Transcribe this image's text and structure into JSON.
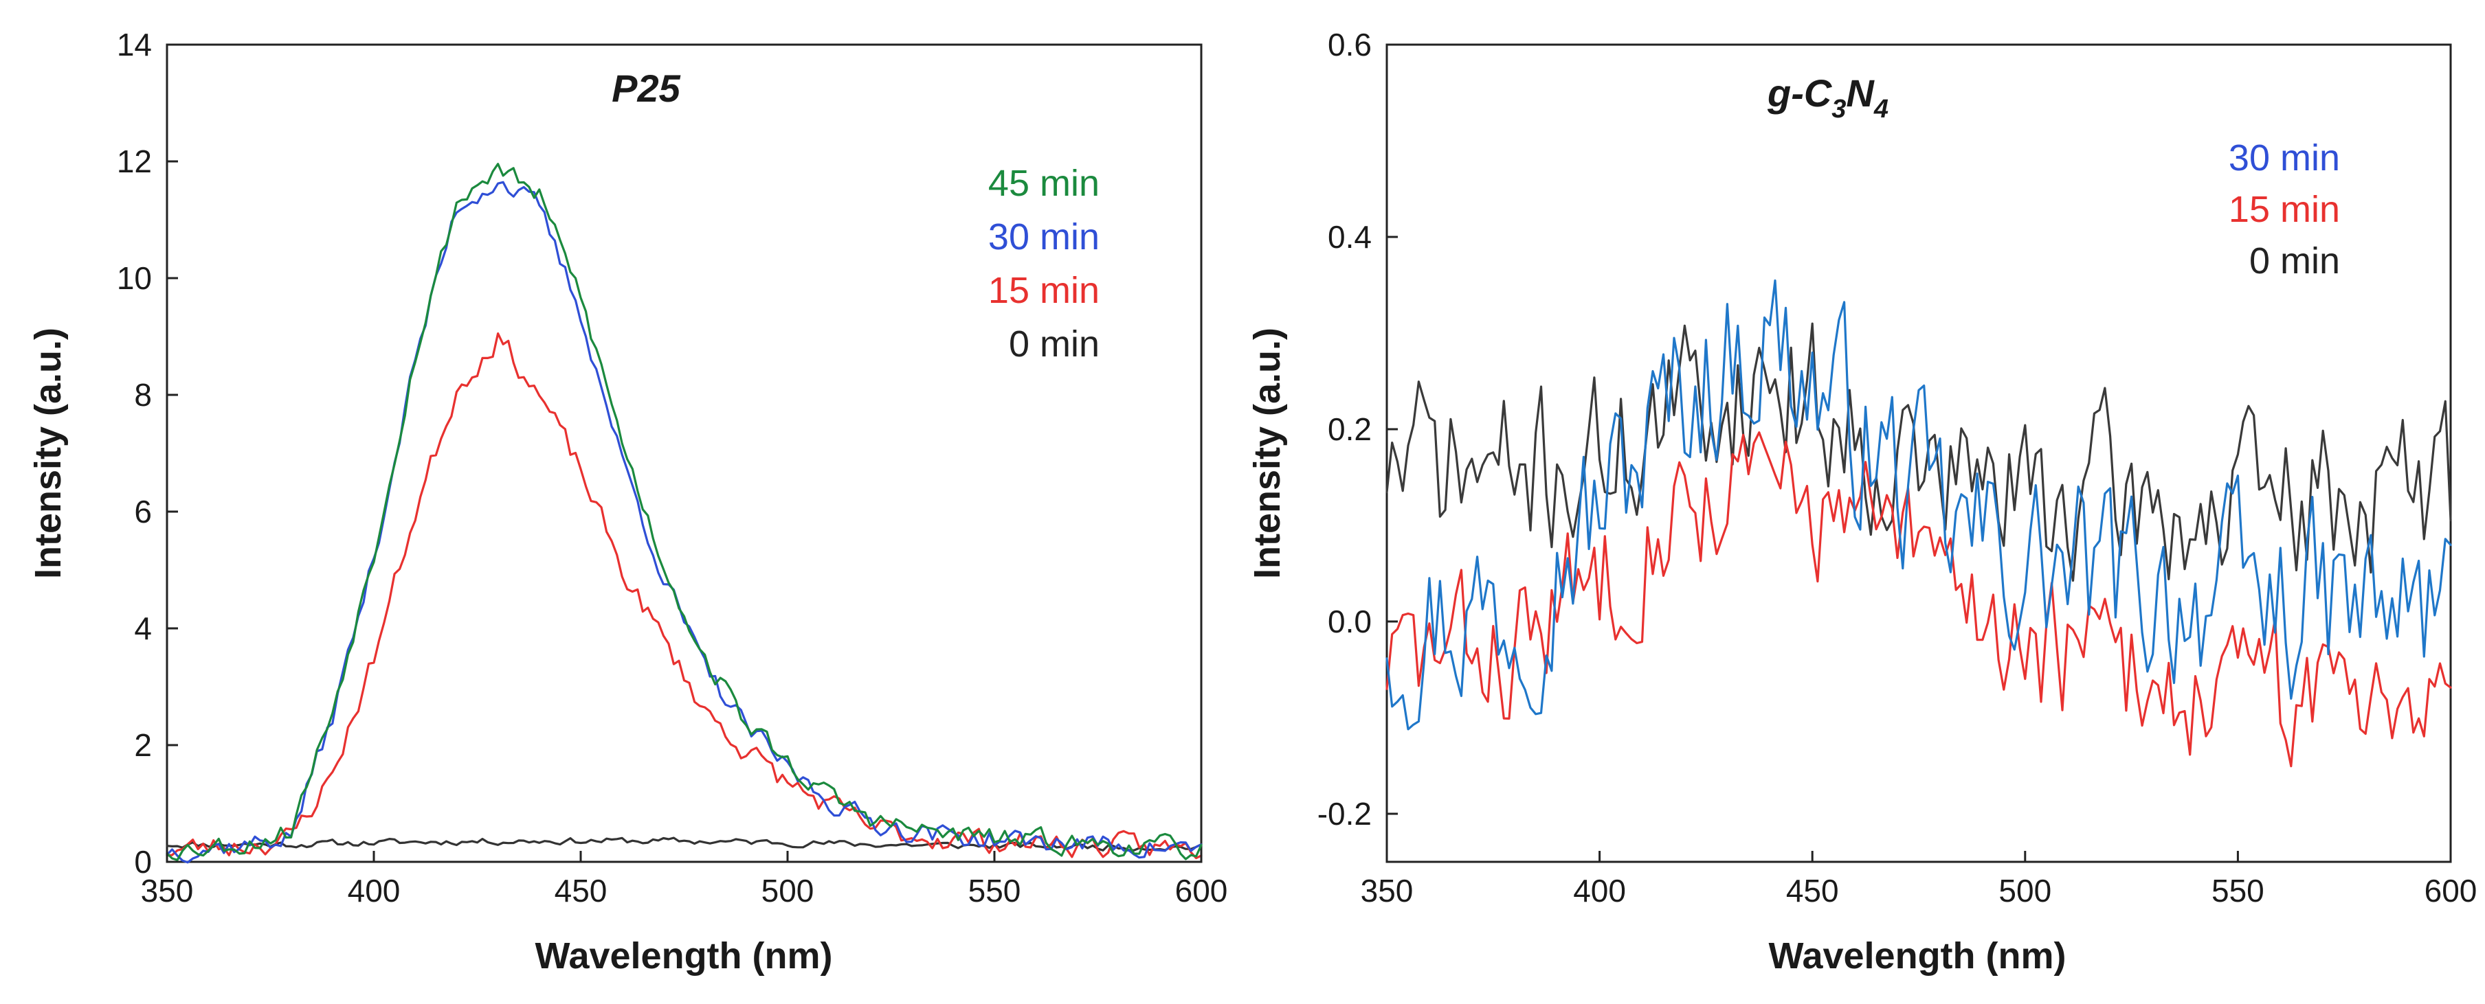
{
  "chart_data": [
    {
      "type": "line",
      "title": "P25",
      "xlabel": "Wavelength (nm)",
      "ylabel": "Intensity (a.u.)",
      "xlim": [
        350,
        600
      ],
      "ylim": [
        0,
        14
      ],
      "xticks": [
        "350",
        "400",
        "450",
        "500",
        "550",
        "600"
      ],
      "yticks": [
        "0",
        "2",
        "4",
        "6",
        "8",
        "10",
        "12",
        "14"
      ],
      "xtick_values": [
        350,
        400,
        450,
        500,
        550,
        600
      ],
      "ytick_values": [
        0,
        2,
        4,
        6,
        8,
        10,
        12,
        14
      ],
      "legend_position": "top-right",
      "series": [
        {
          "name": "0  min",
          "color": "#333333",
          "noise": 0.05,
          "seed": 11,
          "x": [
            350,
            380,
            400,
            420,
            440,
            460,
            480,
            500,
            520,
            540,
            560,
            580,
            600
          ],
          "y": [
            0.3,
            0.3,
            0.33,
            0.35,
            0.36,
            0.36,
            0.35,
            0.33,
            0.3,
            0.28,
            0.27,
            0.26,
            0.25
          ]
        },
        {
          "name": "15 min",
          "color": "#e8312f",
          "noise": 0.18,
          "seed": 23,
          "x": [
            350,
            370,
            380,
            390,
            400,
            410,
            420,
            430,
            440,
            450,
            460,
            470,
            480,
            490,
            500,
            510,
            520,
            530,
            550,
            575,
            600
          ],
          "y": [
            0.2,
            0.3,
            0.4,
            1.5,
            3.5,
            6.0,
            8.1,
            9.0,
            8.0,
            6.7,
            5.0,
            3.8,
            2.6,
            1.9,
            1.35,
            0.95,
            0.6,
            0.45,
            0.35,
            0.28,
            0.22
          ]
        },
        {
          "name": "30 min",
          "color": "#2f4fd6",
          "noise": 0.16,
          "seed": 37,
          "x": [
            350,
            370,
            380,
            390,
            400,
            410,
            420,
            430,
            440,
            450,
            460,
            470,
            480,
            490,
            500,
            510,
            520,
            530,
            550,
            575,
            600
          ],
          "y": [
            0.2,
            0.3,
            0.45,
            2.5,
            5.2,
            8.6,
            11.2,
            11.7,
            11.2,
            9.4,
            6.9,
            4.9,
            3.3,
            2.3,
            1.6,
            1.05,
            0.7,
            0.52,
            0.38,
            0.3,
            0.22
          ]
        },
        {
          "name": "45 min",
          "color": "#1b8a3e",
          "noise": 0.16,
          "seed": 53,
          "x": [
            350,
            370,
            380,
            390,
            400,
            410,
            420,
            430,
            440,
            450,
            460,
            470,
            480,
            490,
            500,
            510,
            520,
            530,
            550,
            575,
            600
          ],
          "y": [
            0.22,
            0.32,
            0.55,
            2.6,
            5.3,
            8.7,
            11.3,
            11.9,
            11.4,
            9.7,
            7.2,
            5.1,
            3.5,
            2.4,
            1.7,
            1.12,
            0.75,
            0.55,
            0.4,
            0.3,
            0.22
          ]
        }
      ],
      "legend": [
        {
          "label": "45 min",
          "color": "#1b8a3e"
        },
        {
          "label": "30 min",
          "color": "#2f4fd6"
        },
        {
          "label": "15 min",
          "color": "#e8312f"
        },
        {
          "label": "0  min",
          "color": "#222222"
        }
      ]
    },
    {
      "type": "line",
      "title": "g-C",
      "title_sub1": "3",
      "title_mid": "N",
      "title_sub2": "4",
      "xlabel": "Wavelength (nm)",
      "ylabel": "Intensity (a.u.)",
      "xlim": [
        350,
        600
      ],
      "ylim": [
        -0.25,
        0.6
      ],
      "xticks": [
        "350",
        "400",
        "450",
        "500",
        "550",
        "600"
      ],
      "yticks": [
        "-0.2",
        "0.0",
        "0.2",
        "0.4",
        "0.6"
      ],
      "xtick_values": [
        350,
        400,
        450,
        500,
        550,
        600
      ],
      "ytick_values": [
        -0.2,
        0.0,
        0.2,
        0.4,
        0.6
      ],
      "legend_position": "top-right",
      "series": [
        {
          "name": "0  min",
          "color": "#3a3a3a",
          "noise": 0.075,
          "seed": 71,
          "x": [
            350,
            380,
            400,
            420,
            440,
            460,
            480,
            500,
            520,
            540,
            560,
            580,
            600
          ],
          "y": [
            0.17,
            0.15,
            0.17,
            0.22,
            0.26,
            0.2,
            0.15,
            0.13,
            0.13,
            0.11,
            0.12,
            0.13,
            0.14
          ]
        },
        {
          "name": "15 min",
          "color": "#e8312f",
          "noise": 0.065,
          "seed": 83,
          "x": [
            350,
            380,
            400,
            420,
            440,
            460,
            480,
            500,
            520,
            540,
            560,
            580,
            600
          ],
          "y": [
            -0.04,
            -0.03,
            0.05,
            0.13,
            0.14,
            0.1,
            0.05,
            -0.02,
            -0.05,
            -0.07,
            -0.08,
            -0.06,
            -0.05
          ]
        },
        {
          "name": "30 min",
          "color": "#1f77c9",
          "noise": 0.085,
          "seed": 97,
          "x": [
            350,
            380,
            400,
            420,
            440,
            460,
            480,
            500,
            520,
            540,
            560,
            580,
            600
          ],
          "y": [
            0.0,
            0.02,
            0.12,
            0.24,
            0.3,
            0.2,
            0.1,
            0.06,
            0.04,
            0.03,
            0.02,
            0.01,
            0.01
          ]
        }
      ],
      "legend": [
        {
          "label": "30 min",
          "color": "#2f4fd6"
        },
        {
          "label": "15 min",
          "color": "#e8312f"
        },
        {
          "label": "0  min",
          "color": "#222222"
        }
      ]
    }
  ]
}
